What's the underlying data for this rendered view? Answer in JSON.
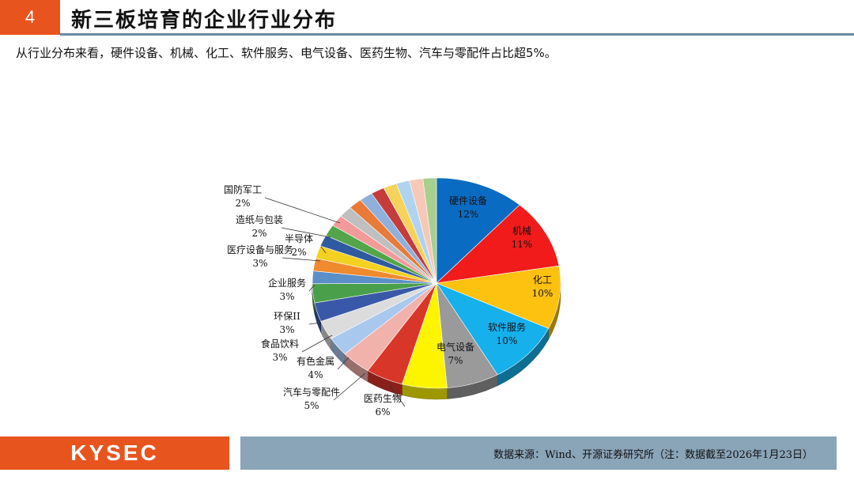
{
  "header": {
    "number": "4",
    "title": "新三板培育的企业行业分布"
  },
  "subtitle": "从行业分布来看，硬件设备、机械、化工、软件服务、电气设备、医药生物、汽车与零配件占比超5%。",
  "footer": {
    "logo": "KYSEC",
    "source": "数据来源：Wind、开源证券研究所（注：数据截至2026年1月23日）"
  },
  "chart_data": {
    "type": "pie",
    "title": "",
    "slices": [
      {
        "label": "硬件设备",
        "pct_label": "12%",
        "value": 12,
        "color": "#0a6bc2"
      },
      {
        "label": "机械",
        "pct_label": "11%",
        "value": 11,
        "color": "#f21b1b"
      },
      {
        "label": "化工",
        "pct_label": "10%",
        "value": 10,
        "color": "#fdc10f"
      },
      {
        "label": "软件服务",
        "pct_label": "10%",
        "value": 10,
        "color": "#16b0ec"
      },
      {
        "label": "电气设备",
        "pct_label": "7%",
        "value": 7,
        "color": "#9a9a9a"
      },
      {
        "label": "医药生物",
        "pct_label": "6%",
        "value": 6,
        "color": "#fdf400"
      },
      {
        "label": "汽车与零配件",
        "pct_label": "5%",
        "value": 5,
        "color": "#d9362a"
      },
      {
        "label": "有色金属",
        "pct_label": "4%",
        "value": 4,
        "color": "#f2b2ac"
      },
      {
        "label": "食品饮料",
        "pct_label": "3%",
        "value": 3,
        "color": "#a9c8ee"
      },
      {
        "label": "环保II",
        "pct_label": "3%",
        "value": 3,
        "color": "#dcdcdc"
      },
      {
        "label": "企业服务",
        "pct_label": "3%",
        "value": 3,
        "color": "#3a58a8"
      },
      {
        "label": "医疗设备与服务",
        "pct_label": "3%",
        "value": 3,
        "color": "#4aa04a"
      },
      {
        "label": "半导体",
        "pct_label": "2%",
        "value": 2,
        "color": "#5a8fc8"
      },
      {
        "label": "造纸与包装",
        "pct_label": "2%",
        "value": 2,
        "color": "#f08a2e"
      },
      {
        "label": "国防军工",
        "pct_label": "2%",
        "value": 2,
        "color": "#f4d020"
      },
      {
        "label": "",
        "pct_label": "",
        "value": 1.8,
        "color": "#2f5aa0"
      },
      {
        "label": "",
        "pct_label": "",
        "value": 1.8,
        "color": "#54a54a"
      },
      {
        "label": "",
        "pct_label": "",
        "value": 1.8,
        "color": "#f29a9a"
      },
      {
        "label": "",
        "pct_label": "",
        "value": 1.8,
        "color": "#bfbfbf"
      },
      {
        "label": "",
        "pct_label": "",
        "value": 1.8,
        "color": "#e87a3a"
      },
      {
        "label": "",
        "pct_label": "",
        "value": 1.8,
        "color": "#8fb0dd"
      },
      {
        "label": "",
        "pct_label": "",
        "value": 1.8,
        "color": "#c43c3c"
      },
      {
        "label": "",
        "pct_label": "",
        "value": 1.8,
        "color": "#f5d35a"
      },
      {
        "label": "",
        "pct_label": "",
        "value": 1.8,
        "color": "#b0d4f0"
      },
      {
        "label": "",
        "pct_label": "",
        "value": 1.8,
        "color": "#f7c8b8"
      },
      {
        "label": "",
        "pct_label": "",
        "value": 1.8,
        "color": "#a8d08d"
      }
    ]
  }
}
